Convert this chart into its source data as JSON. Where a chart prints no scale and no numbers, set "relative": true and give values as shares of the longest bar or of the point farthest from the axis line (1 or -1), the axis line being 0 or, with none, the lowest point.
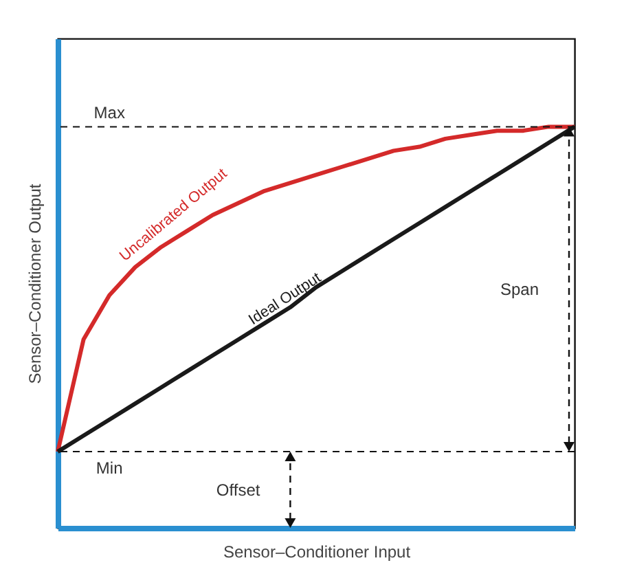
{
  "chart_data": {
    "type": "line",
    "relative": true,
    "xlabel": "Sensor–Conditioner Input",
    "ylabel": "Sensor–Conditioner Output",
    "categories": [
      null,
      null,
      null,
      null,
      null,
      null,
      null,
      null,
      null,
      null,
      null,
      null,
      null,
      null,
      null,
      null,
      null,
      null,
      null,
      null,
      null
    ],
    "series": [
      {
        "name": "Uncalibrated Output",
        "color": "#d42a2a",
        "values": [
          0.19,
          0.47,
          0.58,
          0.65,
          0.7,
          0.74,
          0.78,
          0.81,
          0.84,
          0.86,
          0.88,
          0.9,
          0.92,
          0.94,
          0.95,
          0.97,
          0.98,
          0.99,
          0.99,
          1,
          1
        ]
      },
      {
        "name": "Ideal Output",
        "color": "#1a1a1a",
        "values": [
          0.19,
          0.23,
          0.27,
          0.31,
          0.35,
          0.39,
          0.43,
          0.47,
          0.51,
          0.55,
          0.6,
          0.64,
          0.68,
          0.72,
          0.76,
          0.8,
          0.84,
          0.88,
          0.92,
          0.96,
          1
        ]
      }
    ],
    "ref_lines": [
      {
        "axis": "y",
        "value": 1,
        "label": "Max",
        "line_style": "dashed"
      },
      {
        "axis": "y",
        "value": 0.19,
        "label": "Min",
        "line_style": "dashed"
      }
    ],
    "annotations": [
      "Span",
      "Offset"
    ],
    "grid": false,
    "legend": false
  }
}
